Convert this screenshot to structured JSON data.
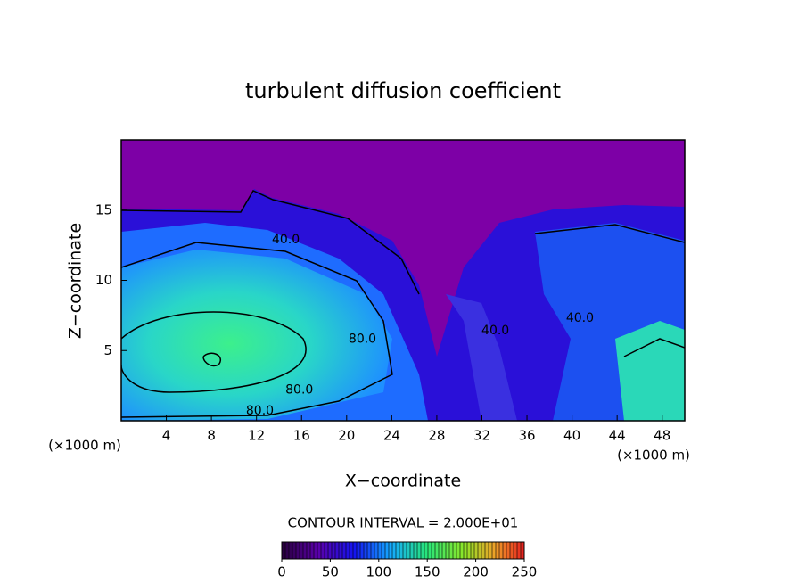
{
  "chart_data": {
    "type": "contour",
    "title": "turbulent diffusion coefficient",
    "x_label": "X−coordinate",
    "y_label": "Z−coordinate",
    "x_unit_left": "(×1000 m)",
    "x_unit_right": "(×1000 m)",
    "xlim": [
      0,
      50
    ],
    "ylim": [
      0,
      20
    ],
    "xticks": [
      4,
      8,
      12,
      16,
      20,
      24,
      28,
      32,
      36,
      40,
      44,
      48
    ],
    "yticks": [
      5,
      10,
      15
    ],
    "contour_labels": [
      {
        "label": "40.0",
        "x": 14.6,
        "y": 12.9
      },
      {
        "label": "80.0",
        "x": 21.4,
        "y": 5.8
      },
      {
        "label": "80.0",
        "x": 15.8,
        "y": 2.2
      },
      {
        "label": "80.0",
        "x": 12.3,
        "y": 0.7
      },
      {
        "label": "40.0",
        "x": 33.2,
        "y": 6.4
      },
      {
        "label": "40.0",
        "x": 40.7,
        "y": 7.3
      }
    ],
    "colorbar": {
      "title": "CONTOUR INTERVAL = 2.000E+01",
      "lim": [
        0,
        250
      ],
      "ticks": [
        0,
        50,
        100,
        150,
        200,
        250
      ]
    }
  }
}
